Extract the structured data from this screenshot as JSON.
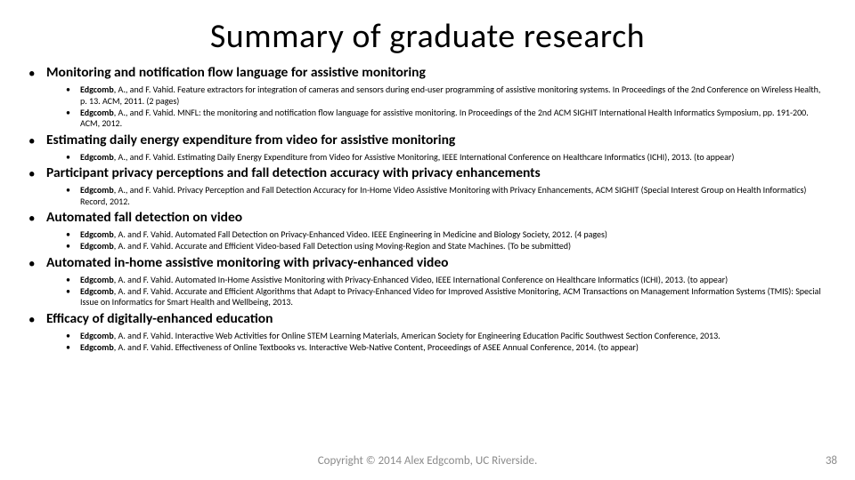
{
  "title": "Summary of graduate research",
  "title_fontsize": 38,
  "title_color": "#000000",
  "heading_fontsize": 15.5,
  "heading_fontweight": 700,
  "pub_fontsize": 10,
  "pub_lineheight": 12.5,
  "background_color": "#ffffff",
  "text_color": "#000000",
  "footer_color": "#8c8c8c",
  "bullet_char": "•",
  "sections": [
    {
      "heading": "Monitoring and notification flow language for assistive monitoring",
      "pubs": [
        {
          "author_bold": "Edgcomb",
          "rest": ", A., and F. Vahid. Feature extractors for integration of cameras and sensors during end-user programming of assistive monitoring systems. In Proceedings of the 2nd Conference on Wireless Health, p. 13. ACM, 2011. (2 pages)"
        },
        {
          "author_bold": "Edgcomb",
          "rest": ", A., and F. Vahid. MNFL: the monitoring and notification flow language for assistive monitoring. In Proceedings of the 2nd ACM SIGHIT International Health Informatics Symposium, pp. 191-200. ACM, 2012."
        }
      ]
    },
    {
      "heading": "Estimating daily energy expenditure from video for assistive monitoring",
      "pubs": [
        {
          "author_bold": "Edgcomb",
          "rest": ", A., and F. Vahid. Estimating Daily Energy Expenditure from Video for Assistive Monitoring, IEEE International Conference on Healthcare Informatics (ICHI), 2013. (to appear)"
        }
      ]
    },
    {
      "heading": "Participant privacy perceptions and fall detection accuracy with privacy enhancements",
      "pubs": [
        {
          "author_bold": "Edgcomb",
          "rest": ", A., and F. Vahid. Privacy Perception and Fall Detection Accuracy for In-Home Video Assistive Monitoring with Privacy Enhancements, ACM SIGHIT (Special Interest Group on Health Informatics) Record, 2012."
        }
      ]
    },
    {
      "heading": "Automated fall detection on video",
      "pubs": [
        {
          "author_bold": "Edgcomb",
          "rest": ", A. and F. Vahid. Automated Fall Detection on Privacy-Enhanced Video. IEEE Engineering in Medicine and Biology Society, 2012. (4 pages)"
        },
        {
          "author_bold": "Edgcomb",
          "rest": ", A. and F. Vahid. Accurate and Efficient Video-based Fall Detection using Moving-Region and State Machines. (To be submitted)"
        }
      ]
    },
    {
      "heading": "Automated in-home assistive monitoring with privacy-enhanced video",
      "pubs": [
        {
          "author_bold": "Edgcomb",
          "rest": ", A. and F. Vahid. Automated In-Home Assistive Monitoring with Privacy-Enhanced Video, IEEE International Conference on Healthcare Informatics (ICHI), 2013. (to appear)"
        },
        {
          "author_bold": "Edgcomb",
          "rest": ", A. and F. Vahid. Accurate and Efficient Algorithms that Adapt to Privacy-Enhanced Video for Improved Assistive Monitoring, ACM Transactions on Management Information Systems (TMIS): Special Issue on Informatics for Smart Health and Wellbeing, 2013."
        }
      ]
    },
    {
      "heading": "Efficacy of digitally-enhanced education",
      "pubs": [
        {
          "author_bold": "Edgcomb",
          "rest": ", A. and F. Vahid. Interactive Web Activities for Online STEM Learning Materials, American Society for Engineering Education Pacific Southwest Section Conference, 2013."
        },
        {
          "author_bold": "Edgcomb",
          "rest": ", A. and F. Vahid. Effectiveness of Online Textbooks vs. Interactive Web-Native Content, Proceedings of ASEE Annual Conference, 2014. (to appear)"
        }
      ]
    }
  ],
  "footer": "Copyright © 2014 Alex Edgcomb, UC Riverside.",
  "page_number": "38"
}
